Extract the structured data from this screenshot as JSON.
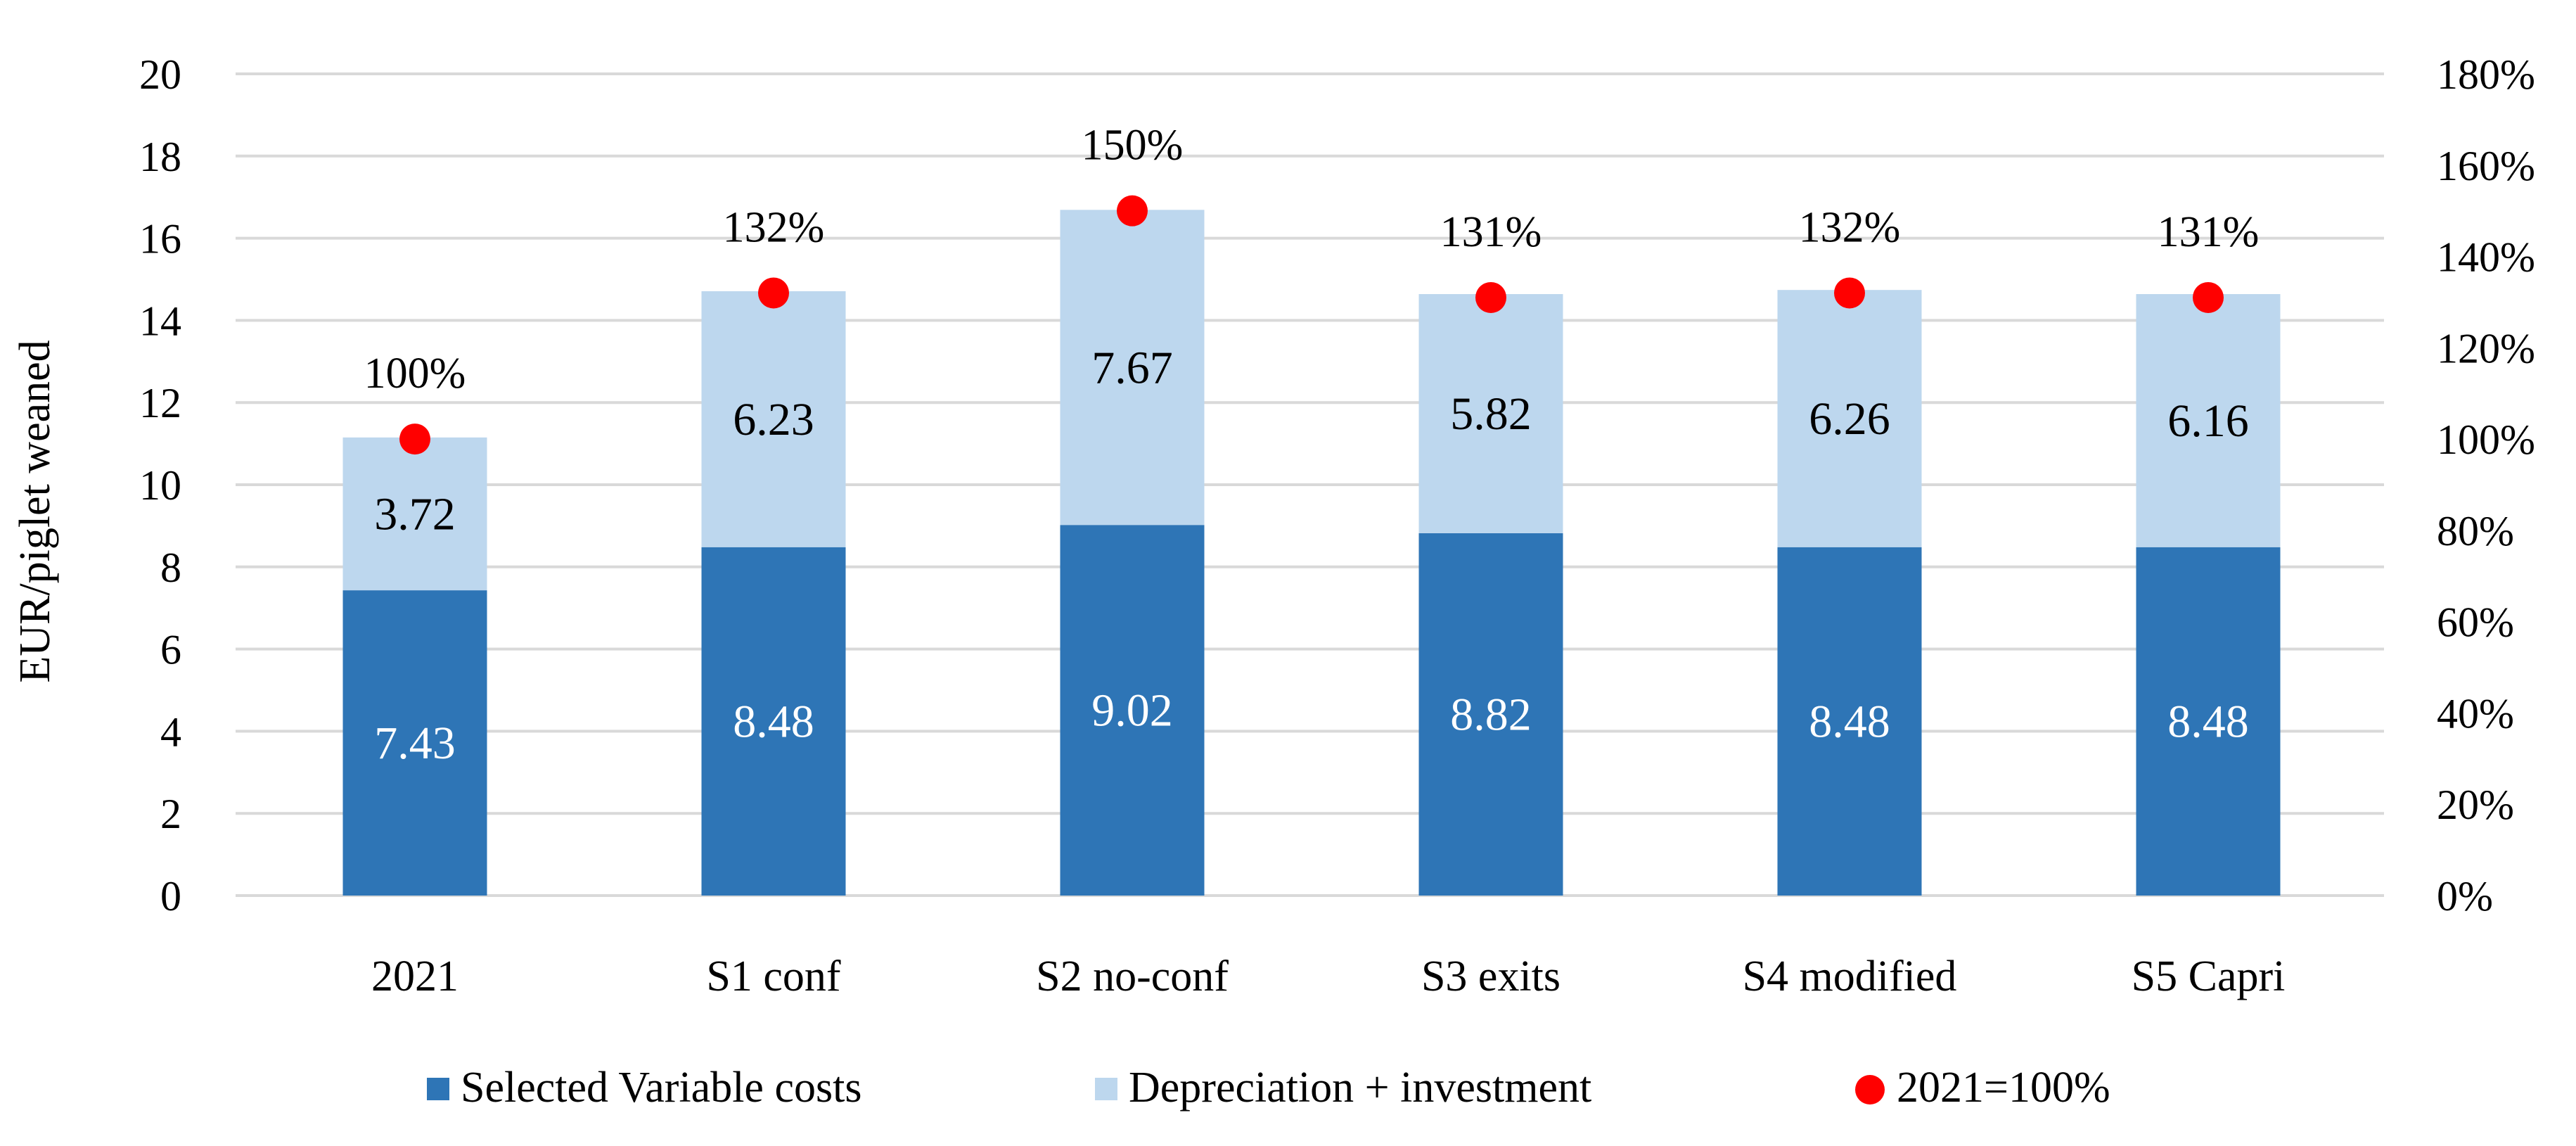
{
  "colors": {
    "variable": "#2E75B6",
    "depreciation": "#BDD7EE",
    "marker": "#FF0000",
    "grid": "#D9D9D9",
    "text": "#000000",
    "bar_label_light": "#FFFFFF"
  },
  "chart_data": {
    "type": "bar",
    "stacked": true,
    "categories": [
      "2021",
      "S1 conf",
      "S2 no-conf",
      "S3 exits",
      "S4 modified",
      "S5 Capri"
    ],
    "series": [
      {
        "name": "Selected Variable costs",
        "axis": "left",
        "values": [
          7.43,
          8.48,
          9.02,
          8.82,
          8.48,
          8.48
        ],
        "labels": [
          "7.43",
          "8.48",
          "9.02",
          "8.82",
          "8.48",
          "8.48"
        ]
      },
      {
        "name": "Depreciation + investment",
        "axis": "left",
        "values": [
          3.72,
          6.23,
          7.67,
          5.82,
          6.26,
          6.16
        ],
        "labels": [
          "3.72",
          "6.23",
          "7.67",
          "5.82",
          "6.26",
          "6.16"
        ]
      },
      {
        "name": "2021=100%",
        "type": "scatter",
        "axis": "right",
        "values": [
          100,
          132,
          150,
          131,
          132,
          131
        ],
        "labels": [
          "100%",
          "132%",
          "150%",
          "131%",
          "132%",
          "131%"
        ]
      }
    ],
    "ylabel": "EUR/piglet weaned",
    "ylim": [
      0,
      20
    ],
    "yticks": [
      "0",
      "2",
      "4",
      "6",
      "8",
      "10",
      "12",
      "14",
      "16",
      "18",
      "20"
    ],
    "y2lim": [
      0,
      180
    ],
    "y2ticks": [
      "0%",
      "20%",
      "40%",
      "60%",
      "80%",
      "100%",
      "120%",
      "140%",
      "160%",
      "180%"
    ],
    "grid": true,
    "legend": [
      "Selected Variable costs",
      "Depreciation + investment",
      "2021=100%"
    ],
    "legend_position": "bottom"
  }
}
